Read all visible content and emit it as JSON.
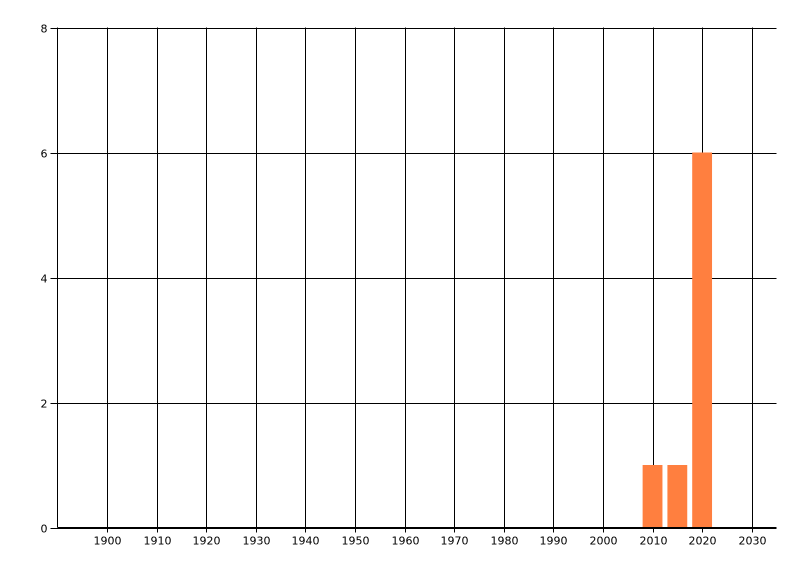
{
  "chart_data": {
    "type": "bar",
    "title": "",
    "xlabel": "",
    "ylabel": "",
    "x": [
      2010,
      2015,
      2020
    ],
    "values": [
      1,
      1,
      6
    ],
    "bar_width_years": 4,
    "xlim": [
      1890,
      2035
    ],
    "ylim": [
      0,
      8
    ],
    "x_ticks": [
      1900,
      1910,
      1920,
      1930,
      1940,
      1950,
      1960,
      1970,
      1980,
      1990,
      2000,
      2010,
      2020,
      2030
    ],
    "y_ticks": [
      0,
      2,
      4,
      6,
      8
    ],
    "grid": true,
    "legend": "none",
    "colors": {
      "bar": "#FF7F3F",
      "grid": "#000000",
      "background": "#FFFFFF"
    }
  }
}
